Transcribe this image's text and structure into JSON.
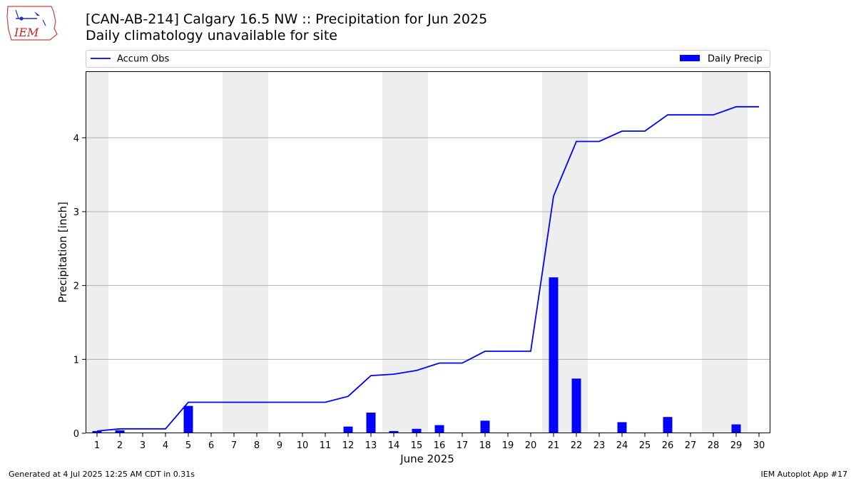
{
  "header": {
    "title": "[CAN-AB-214] Calgary 16.5 NW :: Precipitation for Jun 2025",
    "subtitle": "Daily climatology unavailable for site"
  },
  "logo": {
    "text": "IEM",
    "icon": "iem-iowa-logo"
  },
  "footer": {
    "left": "Generated at 4 Jul 2025 12:25 AM CDT in 0.31s",
    "right": "IEM Autoplot App #17"
  },
  "colors": {
    "bars": "#0000ff",
    "line": "#0000ff",
    "weekend_shade": "#eeeeee",
    "grid": "#b0b0b0"
  },
  "chart_data": {
    "type": "bar",
    "title": "[CAN-AB-214] Calgary 16.5 NW :: Precipitation for Jun 2025",
    "subtitle": "Daily climatology unavailable for site",
    "xlabel": "June 2025",
    "ylabel": "Precipitation [inch]",
    "ylim": [
      0,
      4.9
    ],
    "yticks": [
      0,
      1,
      2,
      3,
      4
    ],
    "grid": "horizontal",
    "legend_placement": "top",
    "categories": [
      "1",
      "2",
      "3",
      "4",
      "5",
      "6",
      "7",
      "8",
      "9",
      "10",
      "11",
      "12",
      "13",
      "14",
      "15",
      "16",
      "17",
      "18",
      "19",
      "20",
      "21",
      "22",
      "23",
      "24",
      "25",
      "26",
      "27",
      "28",
      "29",
      "30"
    ],
    "shaded_days": [
      1,
      7,
      8,
      14,
      15,
      21,
      22,
      28,
      29
    ],
    "series": [
      {
        "name": "Daily Precip",
        "type": "bar",
        "values": [
          0.03,
          0.04,
          0.01,
          0.01,
          0.37,
          0,
          0,
          0,
          0,
          0,
          0,
          0.09,
          0.28,
          0.03,
          0.06,
          0.11,
          0,
          0.17,
          0,
          0,
          2.11,
          0.74,
          0.01,
          0.15,
          0,
          0.22,
          0,
          0,
          0.12,
          0
        ]
      },
      {
        "name": "Accum Obs",
        "type": "line",
        "values": [
          0.03,
          0.06,
          0.06,
          0.06,
          0.42,
          0.42,
          0.42,
          0.42,
          0.42,
          0.42,
          0.42,
          0.5,
          0.78,
          0.8,
          0.85,
          0.95,
          0.95,
          1.11,
          1.11,
          1.11,
          3.21,
          3.95,
          3.95,
          4.09,
          4.09,
          4.31,
          4.31,
          4.31,
          4.42,
          4.42
        ]
      }
    ]
  }
}
